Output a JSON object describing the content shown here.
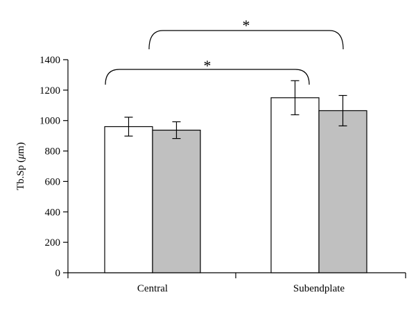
{
  "chart_data": {
    "type": "bar",
    "title": "",
    "xlabel": "",
    "ylabel": "Tb.Sp (μm)",
    "ylim": [
      0,
      1400
    ],
    "yticks": [
      0,
      200,
      400,
      600,
      800,
      1000,
      1200,
      1400
    ],
    "categories": [
      "Central",
      "Subendplate"
    ],
    "grid": false,
    "legend": "none",
    "series": [
      {
        "color": "#ffffff",
        "values": [
          960,
          1150
        ],
        "errors": [
          62,
          112
        ]
      },
      {
        "color": "#c0c0c0",
        "values": [
          937,
          1065
        ],
        "errors": [
          55,
          100
        ]
      }
    ],
    "annotations": [
      {
        "text": "*",
        "from_category": "Central",
        "to_category": "Subendplate",
        "level": "upper"
      },
      {
        "text": "*",
        "from_category": "Central",
        "to_category": "Subendplate",
        "level": "lower"
      }
    ]
  }
}
